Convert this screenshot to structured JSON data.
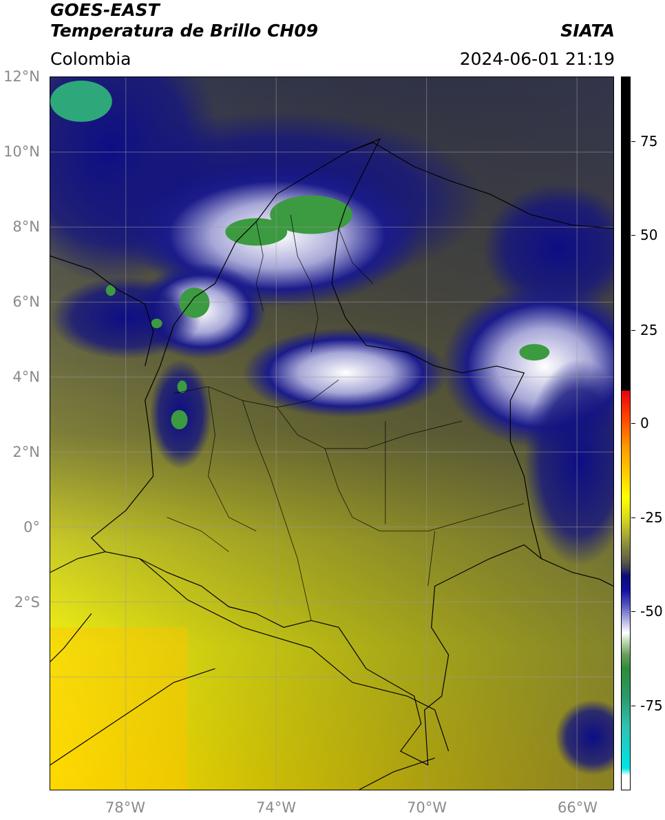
{
  "header": {
    "satellite": "GOES-EAST",
    "product": "Temperatura de Brillo CH09",
    "institution": "SIATA",
    "region": "Colombia",
    "datetime": "2024-06-01 21:19"
  },
  "map": {
    "extent": {
      "lon_min": -80,
      "lon_max": -65,
      "lat_min": -5,
      "lat_max": 14
    },
    "lat_ticks": [
      "12°N",
      "10°N",
      "8°N",
      "6°N",
      "4°N",
      "2°N",
      "0°",
      "2°S"
    ],
    "lon_ticks": [
      "78°W",
      "74°W",
      "70°W",
      "66°W"
    ],
    "gridlines": true
  },
  "colorbar": {
    "labels": [
      "75",
      "50",
      "25",
      "0",
      "-25",
      "-50",
      "-75"
    ],
    "colors": {
      "black": "#000000",
      "red": "#e8000b",
      "orange": "#ff9a00",
      "yellow": "#ffff00",
      "olive": "#6a6a3a",
      "navy": "#0b0b7a",
      "white": "#ffffff",
      "green": "#2e8b3a",
      "cyan": "#00e5e5"
    }
  }
}
